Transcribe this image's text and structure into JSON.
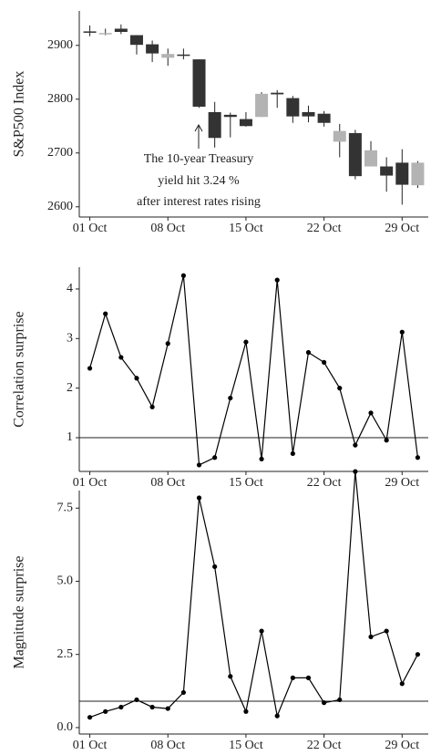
{
  "chart_data": [
    {
      "type": "candlestick",
      "y_label": "S&P500 Index",
      "categories": [
        "01 Oct",
        null,
        null,
        null,
        null,
        "08 Oct",
        null,
        null,
        null,
        null,
        "15 Oct",
        null,
        null,
        null,
        null,
        "22 Oct",
        null,
        null,
        null,
        null,
        "29 Oct",
        null
      ],
      "open": [
        2926,
        2923,
        2931,
        2919,
        2902,
        2877,
        2883,
        2874,
        2776,
        2771,
        2763,
        2767,
        2812,
        2802,
        2776,
        2773,
        2721,
        2737,
        2675,
        2675,
        2682,
        2640
      ],
      "high": [
        2937,
        2931,
        2939,
        2919,
        2909,
        2894,
        2894,
        2874,
        2795,
        2775,
        2776,
        2813,
        2817,
        2806,
        2788,
        2778,
        2754,
        2743,
        2722,
        2692,
        2707,
        2685
      ],
      "low": [
        2917,
        2919,
        2921,
        2883,
        2869,
        2862,
        2874,
        2784,
        2710,
        2729,
        2749,
        2767,
        2784,
        2756,
        2757,
        2749,
        2692,
        2651,
        2675,
        2628,
        2604,
        2635
      ],
      "close": [
        2924,
        2923,
        2925,
        2901,
        2885,
        2884,
        2881,
        2786,
        2728,
        2767,
        2750,
        2810,
        2809,
        2768,
        2768,
        2756,
        2741,
        2657,
        2705,
        2658,
        2641,
        2682
      ],
      "up_color": "#b3b3b3",
      "down_color": "#333333",
      "ylim": [
        2581,
        2964
      ],
      "yticks": [
        2600,
        2700,
        2800,
        2900
      ],
      "annotation": [
        "The 10-year Treasury",
        "yield hit 3.24 %",
        "after interest rates rising"
      ]
    },
    {
      "type": "line",
      "y_label": "Correlation surprise",
      "categories": [
        "01 Oct",
        null,
        null,
        null,
        null,
        "08 Oct",
        null,
        null,
        null,
        null,
        "15 Oct",
        null,
        null,
        null,
        null,
        "22 Oct",
        null,
        null,
        null,
        null,
        "29 Oct",
        null
      ],
      "values": [
        2.4,
        3.5,
        2.62,
        2.2,
        1.62,
        2.9,
        4.27,
        0.45,
        0.6,
        1.8,
        2.93,
        0.57,
        4.18,
        0.68,
        2.72,
        2.52,
        2.0,
        0.85,
        1.5,
        0.95,
        3.13,
        0.6
      ],
      "color": "#000000",
      "hline": 1,
      "ylim": [
        0.32,
        4.44
      ],
      "yticks": [
        1,
        2,
        3,
        4
      ]
    },
    {
      "type": "line",
      "y_label": "Magnitude surprise",
      "categories": [
        "01 Oct",
        null,
        null,
        null,
        null,
        "08 Oct",
        null,
        null,
        null,
        null,
        "15 Oct",
        null,
        null,
        null,
        null,
        "22 Oct",
        null,
        null,
        null,
        null,
        "29 Oct",
        null
      ],
      "values": [
        0.35,
        0.55,
        0.7,
        0.95,
        0.7,
        0.65,
        1.2,
        7.85,
        5.5,
        1.75,
        0.55,
        3.3,
        0.4,
        1.7,
        1.7,
        0.85,
        0.95,
        8.75,
        3.1,
        3.3,
        1.5,
        2.5
      ],
      "color": "#000000",
      "hline": 0.9,
      "ylim": [
        -0.22,
        8.1
      ],
      "yticks": [
        {
          "value": 0,
          "label": "0.0"
        },
        2.5,
        {
          "value": 5,
          "label": "5.0"
        },
        7.5
      ]
    }
  ]
}
